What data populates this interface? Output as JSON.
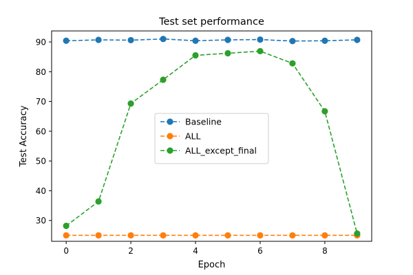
{
  "chart_data": {
    "type": "line",
    "title": "Test set performance",
    "xlabel": "Epoch",
    "ylabel": "Test Accuracy",
    "x": [
      0,
      1,
      2,
      3,
      4,
      5,
      6,
      7,
      8,
      9
    ],
    "xlim": [
      -0.45,
      9.45
    ],
    "ylim": [
      23.0,
      93.7
    ],
    "xticks": [
      0,
      2,
      4,
      6,
      8
    ],
    "yticks": [
      30,
      40,
      50,
      60,
      70,
      80,
      90
    ],
    "grid": false,
    "legend_position": "center",
    "series": [
      {
        "name": "Baseline",
        "color": "#1f77b4",
        "line_style": "dashed",
        "marker": "circle",
        "values": [
          90.4,
          90.7,
          90.6,
          91.0,
          90.4,
          90.7,
          90.8,
          90.3,
          90.4,
          90.7
        ]
      },
      {
        "name": "ALL",
        "color": "#ff7f0e",
        "line_style": "dashed",
        "marker": "circle",
        "values": [
          25.0,
          25.0,
          25.0,
          25.0,
          25.0,
          25.0,
          25.0,
          25.0,
          25.0,
          25.0
        ]
      },
      {
        "name": "ALL_except_final",
        "color": "#2ca02c",
        "line_style": "dashed",
        "marker": "circle",
        "values": [
          28.2,
          36.4,
          69.3,
          77.3,
          85.5,
          86.2,
          86.9,
          82.8,
          66.7,
          25.6
        ]
      }
    ]
  }
}
